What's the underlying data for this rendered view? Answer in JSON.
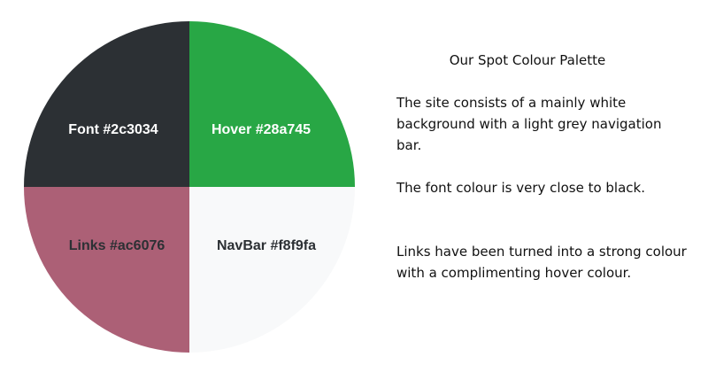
{
  "palette": {
    "swatches": [
      {
        "name": "Font",
        "hex": "#2c3034",
        "label": "Font #2c3034",
        "text_color": "#ffffff"
      },
      {
        "name": "Hover",
        "hex": "#28a745",
        "label": "Hover #28a745",
        "text_color": "#ffffff"
      },
      {
        "name": "Links",
        "hex": "#ac6076",
        "label": "Links #ac6076",
        "text_color": "#2c3034"
      },
      {
        "name": "NavBar",
        "hex": "#f8f9fa",
        "label": "NavBar #f8f9fa",
        "text_color": "#2c3034"
      }
    ]
  },
  "panel": {
    "title": "Our Spot Colour Palette",
    "paragraphs": [
      "The site consists of a mainly white background with a light grey navigation bar.",
      "The font colour is very close to black.",
      "Links have been turned into a strong colour with a complimenting hover colour."
    ]
  }
}
